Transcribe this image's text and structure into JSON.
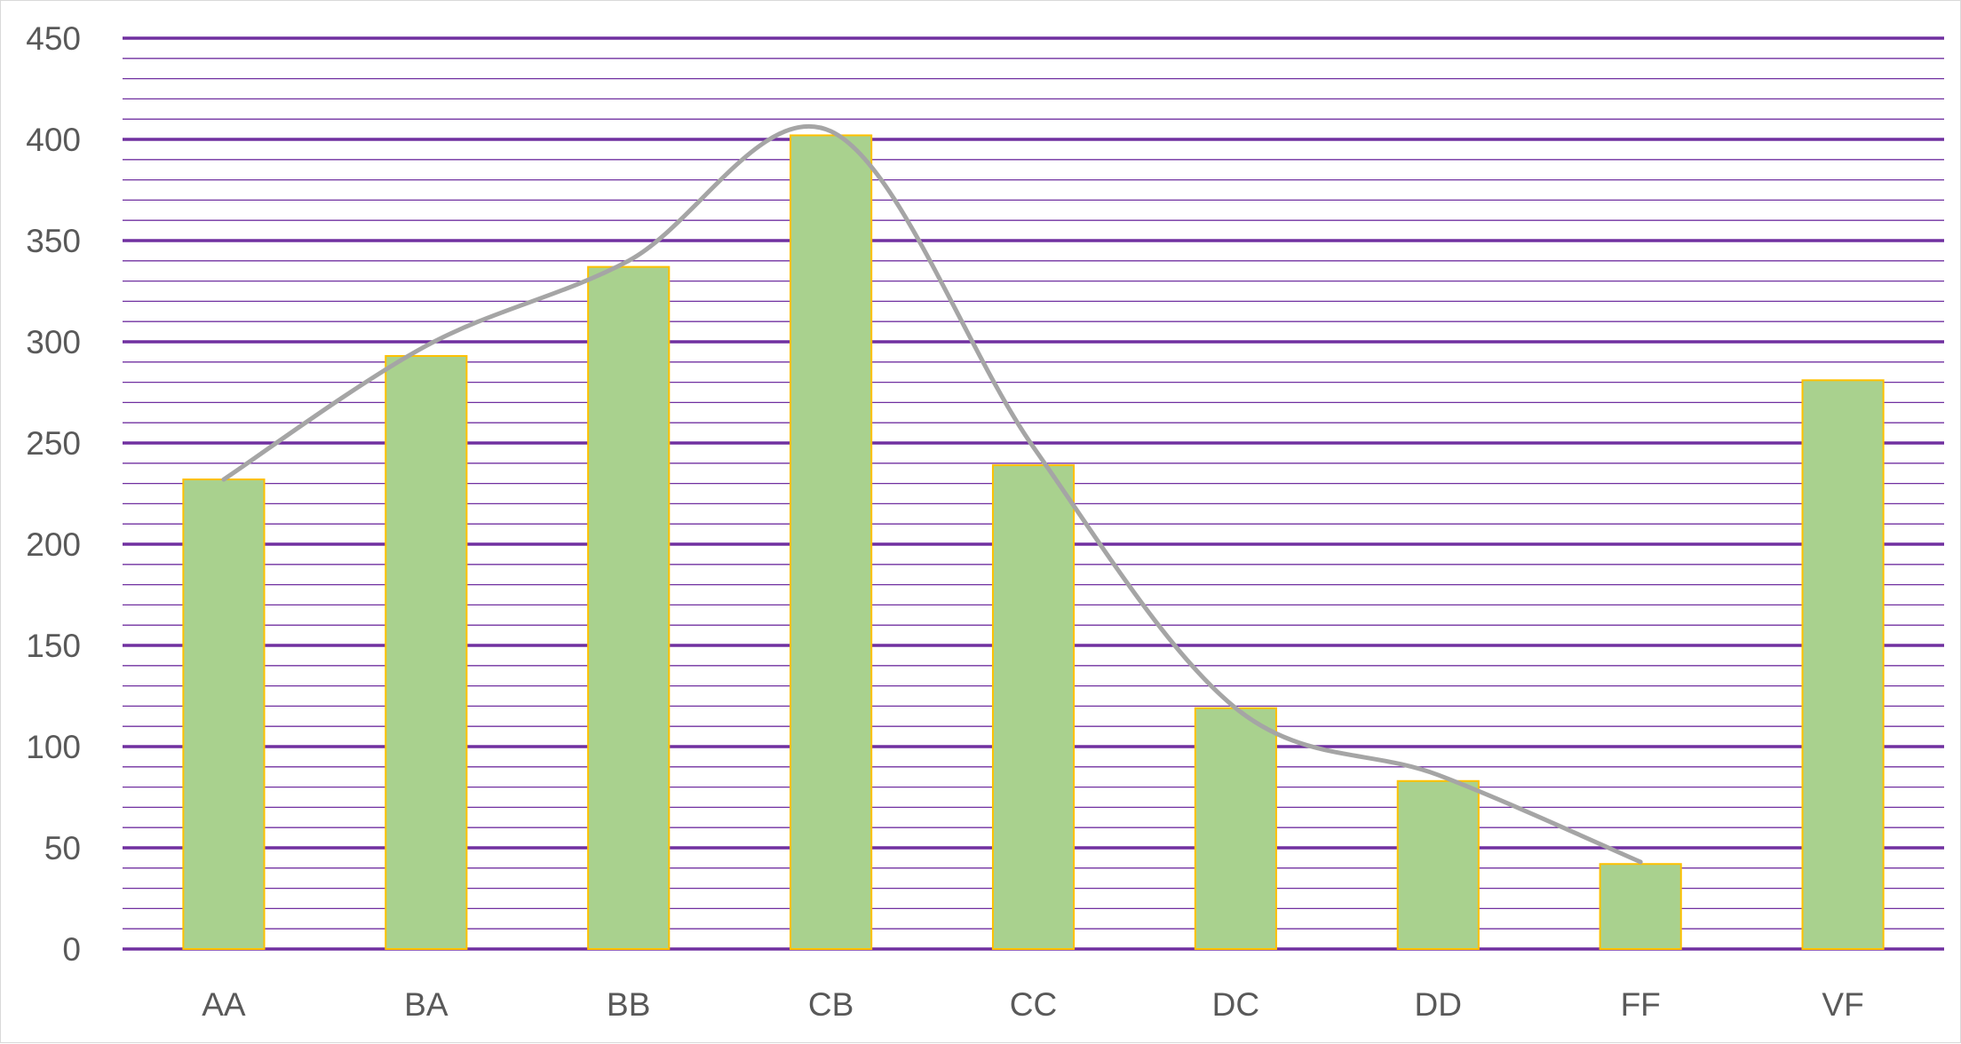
{
  "chart_data": {
    "type": "bar",
    "categories": [
      "AA",
      "BA",
      "BB",
      "CB",
      "CC",
      "DC",
      "DD",
      "FF",
      "VF"
    ],
    "series": [
      {
        "values": [
          232,
          293,
          337,
          402,
          239,
          119,
          83,
          42,
          281
        ]
      }
    ],
    "trendline": {
      "type": "smoothed-line",
      "categories": [
        "AA",
        "BA",
        "BB",
        "CB",
        "CC",
        "DC",
        "DD",
        "FF"
      ],
      "values": [
        232,
        298,
        340,
        404,
        248,
        119,
        86,
        43
      ]
    },
    "ylim": [
      0,
      450
    ],
    "y_ticks": [
      "0",
      "50",
      "100",
      "150",
      "200",
      "250",
      "300",
      "350",
      "400",
      "450"
    ],
    "minor_grid_step": 10,
    "grid": true,
    "legend": "none",
    "colors": {
      "bar_fill": "#a9d18e",
      "bar_edge": "#ffc000",
      "major_grid": "#7030a0",
      "minor_grid": "#7030a0",
      "trendline": "#a5a5a5",
      "tick_text": "#595959"
    }
  }
}
